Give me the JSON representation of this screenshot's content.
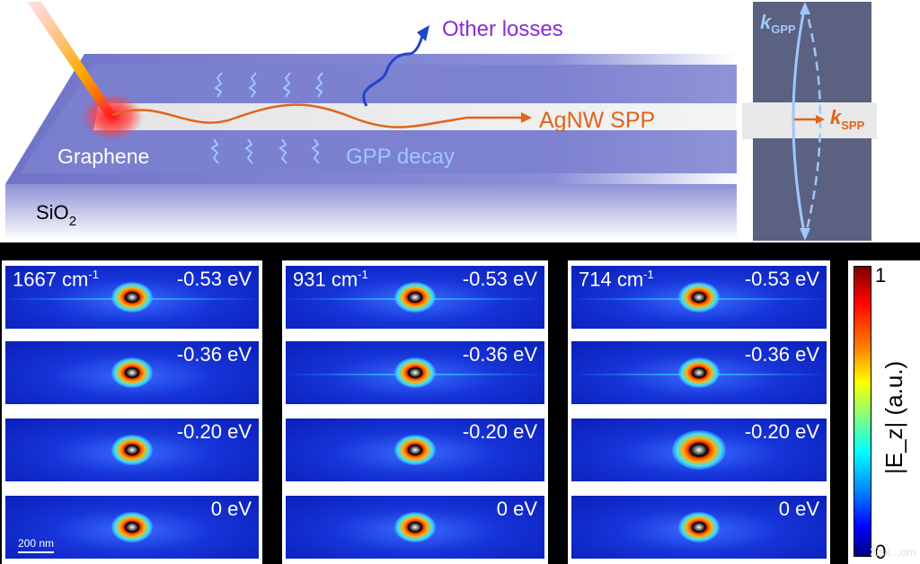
{
  "schematic": {
    "labels": {
      "graphene": "Graphene",
      "sio2_main": "SiO",
      "sio2_sub": "2",
      "other_losses": "Other losses",
      "agnw_spp": "AgNW SPP",
      "gpp_decay": "GPP decay",
      "k_gpp_main": "k",
      "k_gpp_sub": "GPP",
      "k_spp_main": "k",
      "k_spp_sub": "SPP"
    },
    "colors": {
      "substrate": "#6a6fbf",
      "wire": "#e6e6e6",
      "spp": "#e0641a",
      "gpp": "#9fc6ff",
      "losses_text": "#8a2bd6",
      "losses_arrow": "#2244cc"
    }
  },
  "columns": [
    {
      "frequency": "1667 cm",
      "frequency_sup": "-1",
      "panels": [
        "-0.53 eV",
        "-0.36 eV",
        "-0.20 eV",
        "0 eV"
      ]
    },
    {
      "frequency": "931 cm",
      "frequency_sup": "-1",
      "panels": [
        "-0.53 eV",
        "-0.36 eV",
        "-0.20 eV",
        "0 eV"
      ]
    },
    {
      "frequency": "714 cm",
      "frequency_sup": "-1",
      "panels": [
        "-0.53 eV",
        "-0.36 eV",
        "-0.20 eV",
        "0 eV"
      ]
    }
  ],
  "scalebar": "200 nm",
  "colorbar": {
    "max": "1",
    "min": "0",
    "label": "|E_z| (a.u.)"
  },
  "watermark": "3isk...om"
}
